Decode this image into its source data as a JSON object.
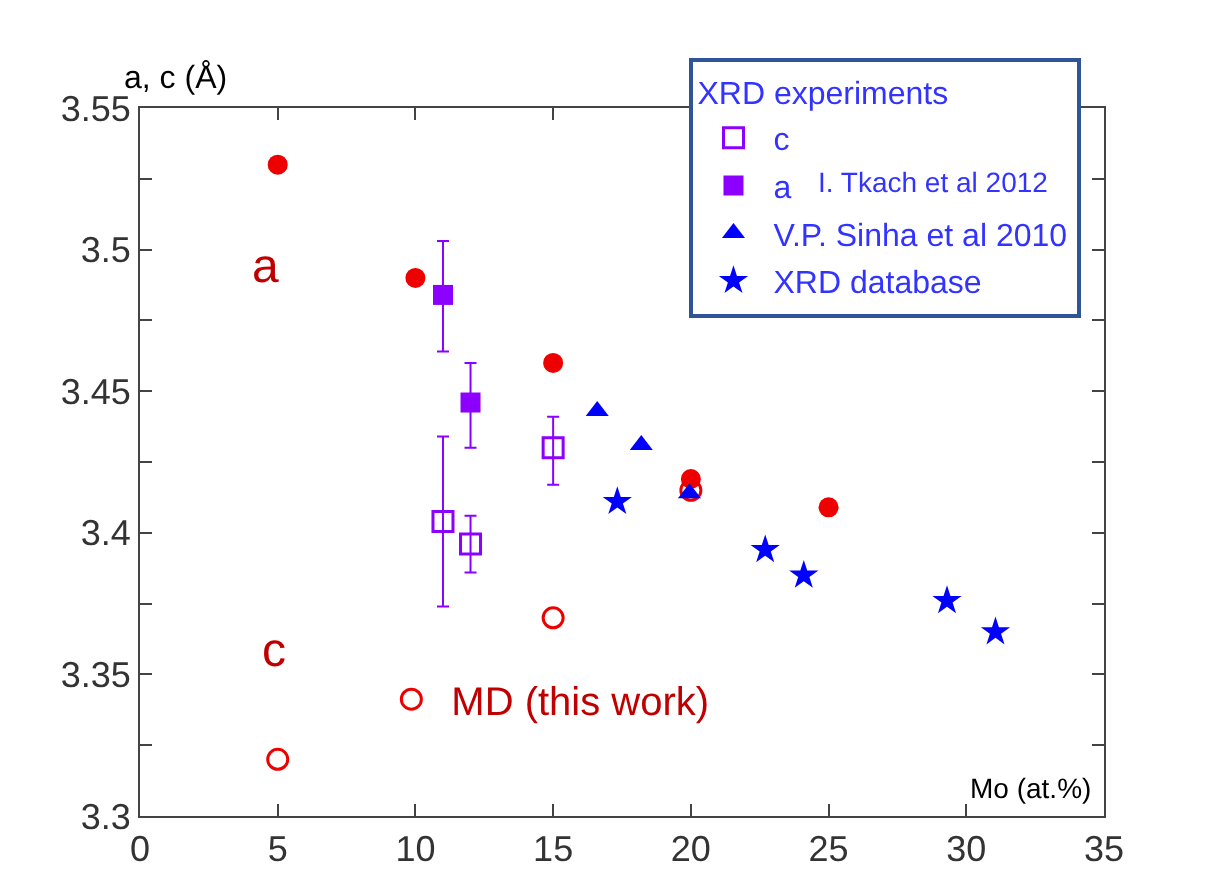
{
  "chart_data": {
    "type": "scatter",
    "xlabel": "Mo (at.%)",
    "ylabel": "a, c (Å)",
    "legend_title": "XRD experiments",
    "xlim": [
      0,
      35
    ],
    "xticks": [
      0,
      5,
      10,
      15,
      20,
      25,
      30,
      35
    ],
    "ylim": [
      3.3,
      3.55
    ],
    "yticks": [
      3.3,
      {
        "value": 3.325,
        "label": null
      },
      3.35,
      {
        "value": 3.375,
        "label": null
      },
      3.4,
      {
        "value": 3.425,
        "label": null
      },
      3.45,
      {
        "value": 3.475,
        "label": null
      },
      3.5,
      {
        "value": 3.525,
        "label": null
      },
      3.55
    ],
    "grid": false,
    "legend": "top right",
    "series": [
      {
        "name": "MD (this work)",
        "color": "#ee0000",
        "marker": "circle",
        "x": [
          5,
          15,
          20
        ],
        "values": [
          3.32,
          3.37,
          3.415
        ]
      },
      {
        "color": "#ee0000",
        "marker": "circle",
        "x": [
          5,
          10,
          15,
          20,
          25
        ],
        "values": [
          3.53,
          3.49,
          3.46,
          3.419,
          3.409
        ]
      },
      {
        "name": "c",
        "color": "#8b00ff",
        "marker": "square",
        "x": [
          11,
          12,
          15
        ],
        "values": [
          3.404,
          3.396,
          3.43
        ],
        "errors": [
          [
            3.374,
            3.434
          ],
          [
            3.386,
            3.406
          ],
          [
            3.417,
            3.441
          ]
        ]
      },
      {
        "name": "a",
        "color": "#8b00ff",
        "marker": "square",
        "x": [
          11,
          12
        ],
        "values": [
          3.484,
          3.446
        ],
        "errors": [
          [
            3.464,
            3.503
          ],
          [
            3.43,
            3.46
          ]
        ]
      },
      {
        "name": "V.P. Sinha et al 2010",
        "color": "#0000ff",
        "marker": "triangle",
        "x": [
          16.6,
          18.2,
          19.95
        ],
        "values": [
          3.443,
          3.431,
          3.414
        ]
      },
      {
        "name": "XRD database",
        "color": "#0000ff",
        "marker": "star",
        "x": [
          17.33,
          22.7,
          24.1,
          29.3,
          31.06
        ],
        "values": [
          3.411,
          3.394,
          3.385,
          3.376,
          3.365
        ]
      }
    ],
    "annotations": [
      "a",
      "c",
      "I. Tkach et al 2012"
    ]
  }
}
